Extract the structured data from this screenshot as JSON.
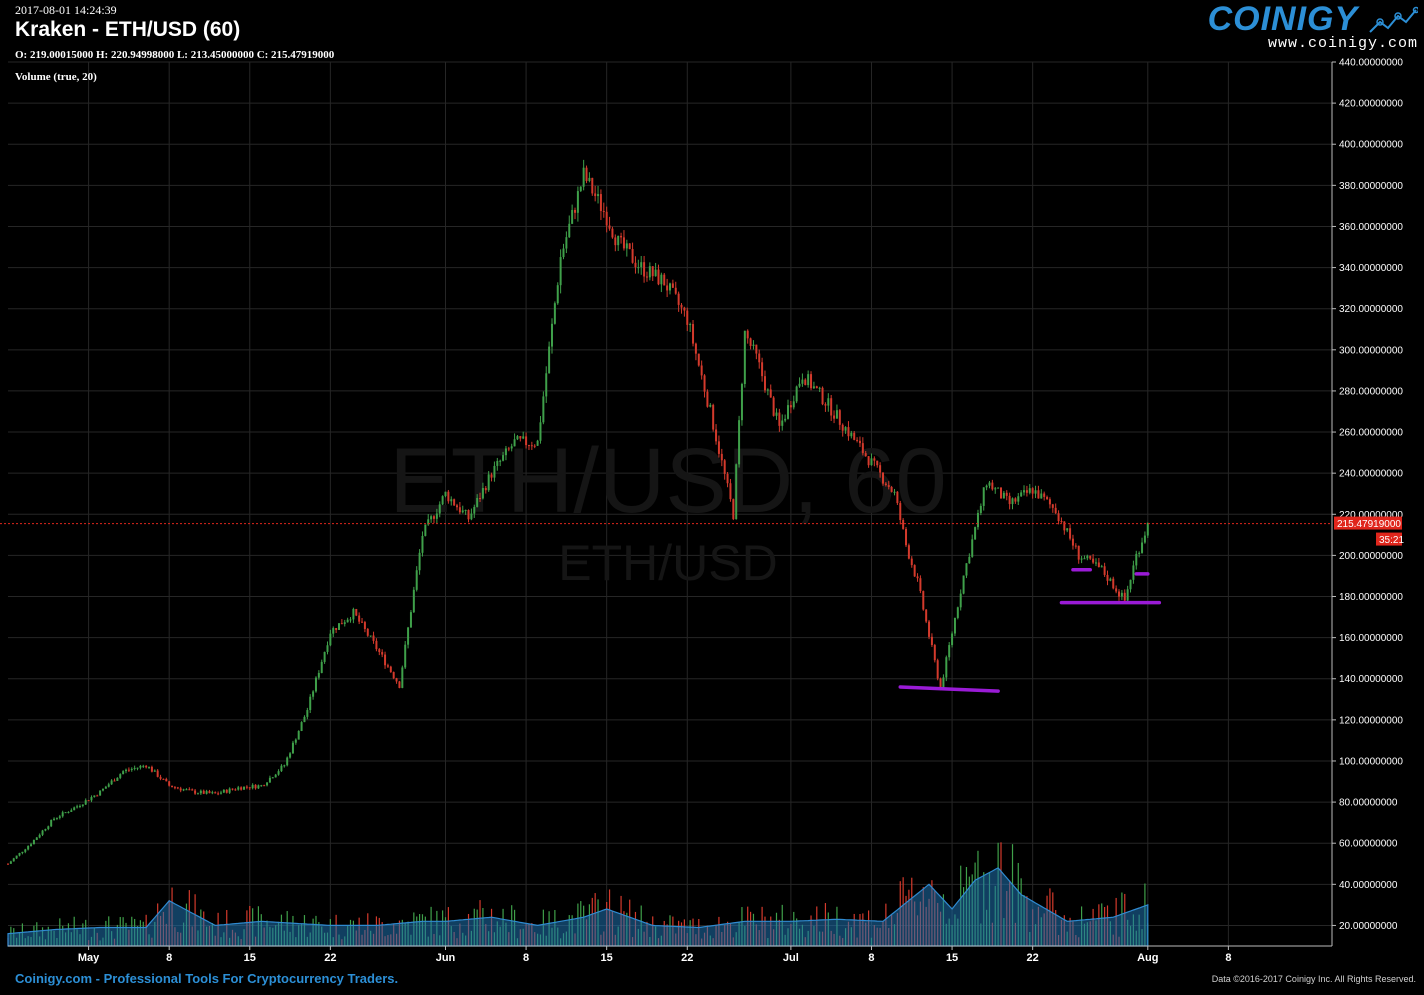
{
  "header": {
    "timestamp": "2017-08-01 14:24:39",
    "title": "Kraken - ETH/USD (60)",
    "ohlc": "O: 219.00015000 H: 220.94998000 L: 213.45000000 C: 215.47919000",
    "volume_indicator": "Volume (true, 20)"
  },
  "logo": {
    "word": "COINIGY",
    "url": "www.coinigy.com"
  },
  "footer": {
    "left": "Coinigy.com - Professional Tools For Cryptocurrency Traders.",
    "right": "Data ©2016-2017 Coinigy Inc. All Rights Reserved."
  },
  "watermark": {
    "big": "ETH/USD, 60",
    "small": "ETH/USD"
  },
  "colors": {
    "background": "#000000",
    "grid": "#262626",
    "up": "#3fa04a",
    "down": "#d43a2c",
    "volume_ma": "#1f73b0",
    "annotation": "#9a1bd6",
    "price_line": "#e0261c",
    "axis_text": "#ffffff",
    "brand": "#2c8fd6"
  },
  "chart_data": {
    "type": "line",
    "title": "Kraken - ETH/USD (60)",
    "ylim": [
      10,
      440
    ],
    "y_ticks": [
      "20.00000000",
      "40.00000000",
      "60.00000000",
      "80.00000000",
      "100.00000000",
      "120.00000000",
      "140.00000000",
      "160.00000000",
      "180.00000000",
      "200.00000000",
      "220.00000000",
      "240.00000000",
      "260.00000000",
      "280.00000000",
      "300.00000000",
      "320.00000000",
      "340.00000000",
      "360.00000000",
      "380.00000000",
      "400.00000000",
      "420.00000000",
      "440.00000000"
    ],
    "x_ticks": [
      "May",
      "8",
      "15",
      "22",
      "Jun",
      "8",
      "15",
      "22",
      "Jul",
      "8",
      "15",
      "22",
      "Aug",
      "8"
    ],
    "x_tick_days": [
      0,
      7,
      14,
      21,
      31,
      38,
      45,
      52,
      61,
      68,
      75,
      82,
      92,
      99
    ],
    "x_range_days": [
      -7,
      108
    ],
    "series": [
      {
        "x_days": [
          -7,
          -5,
          -3,
          -1,
          1,
          3,
          5,
          7,
          9,
          11,
          13,
          15,
          17,
          19,
          21,
          23,
          25,
          27,
          29,
          31,
          33,
          35,
          37,
          39,
          41,
          43,
          45,
          46,
          48,
          50,
          52,
          54,
          56,
          57,
          58,
          60,
          62,
          64,
          66,
          68,
          70,
          71,
          72,
          74,
          76,
          78,
          80,
          82,
          84,
          86,
          88,
          90,
          91,
          92
        ],
        "values": [
          50,
          60,
          72,
          78,
          85,
          95,
          98,
          88,
          85,
          84,
          87,
          88,
          98,
          125,
          163,
          172,
          155,
          137,
          210,
          230,
          218,
          240,
          255,
          255,
          345,
          385,
          365,
          352,
          340,
          333,
          315,
          270,
          220,
          308,
          296,
          262,
          288,
          275,
          260,
          245,
          230,
          205,
          187,
          135,
          190,
          236,
          225,
          232,
          222,
          200,
          193,
          178,
          200,
          215
        ]
      }
    ],
    "last_price": "215.47919000",
    "countdown": "35:21",
    "volume": {
      "x_days": [
        -7,
        -3,
        1,
        5,
        7,
        11,
        15,
        21,
        25,
        29,
        31,
        35,
        39,
        43,
        45,
        49,
        53,
        57,
        61,
        65,
        69,
        73,
        75,
        77,
        79,
        81,
        85,
        89,
        92
      ],
      "values": [
        6,
        8,
        9,
        9,
        22,
        10,
        12,
        10,
        10,
        12,
        12,
        14,
        10,
        14,
        18,
        10,
        9,
        12,
        12,
        13,
        12,
        30,
        18,
        32,
        38,
        25,
        12,
        14,
        20
      ]
    },
    "annotations": [
      {
        "x_days": [
          70.5,
          79
        ],
        "y": [
          136,
          134
        ]
      },
      {
        "x_days": [
          84.5,
          93
        ],
        "y": [
          177,
          177
        ]
      },
      {
        "x_days": [
          85.5,
          87
        ],
        "y": [
          193,
          193
        ]
      },
      {
        "x_days": [
          91,
          92
        ],
        "y": [
          191,
          191
        ]
      }
    ]
  }
}
